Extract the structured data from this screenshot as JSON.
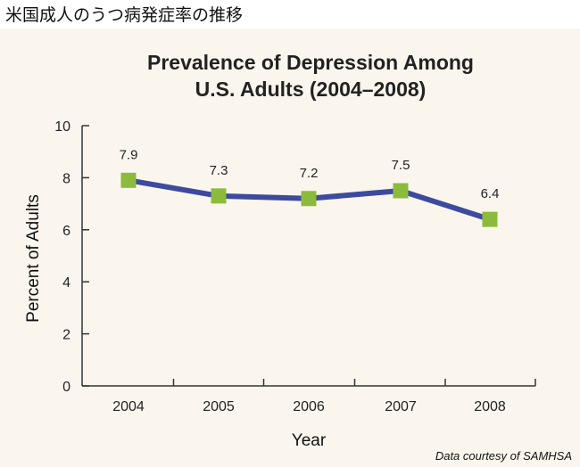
{
  "page": {
    "heading": "米国成人のうつ病発症率の推移"
  },
  "chart_data": {
    "type": "line",
    "title_lines": [
      "Prevalence of Depression Among",
      "U.S. Adults (2004–2008)"
    ],
    "categories": [
      "2004",
      "2005",
      "2006",
      "2007",
      "2008"
    ],
    "series": [
      {
        "name": "Percent of Adults",
        "values": [
          7.9,
          7.3,
          7.2,
          7.5,
          6.4
        ]
      }
    ],
    "data_labels": [
      "7.9",
      "7.3",
      "7.2",
      "7.5",
      "6.4"
    ],
    "xlabel": "Year",
    "ylabel": "Percent of Adults",
    "ylim": [
      0,
      10
    ],
    "yticks": [
      "0",
      "2",
      "4",
      "6",
      "8",
      "10"
    ],
    "credit": "Data courtesy of SAMHSA",
    "colors": {
      "line": "#3d4aa0",
      "marker": "#8cbb3c",
      "axis": "#333333",
      "background": "#faf6ed"
    }
  }
}
